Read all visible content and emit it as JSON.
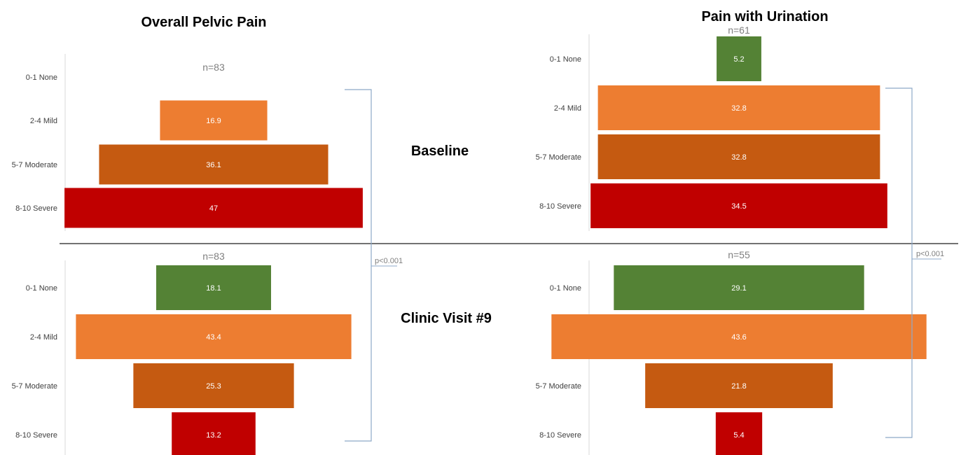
{
  "chart_data": {
    "type": "bar",
    "categories": [
      "0-1 None",
      "2-4 Mild",
      "5-7 Moderate",
      "8-10 Severe"
    ],
    "colors": [
      "#548235",
      "#ED7D31",
      "#C55A11",
      "#C00000"
    ],
    "row_labels": {
      "baseline": "Baseline",
      "visit9": "Clinic Visit #9"
    },
    "panels": [
      {
        "title": "Overall Pelvic Pain",
        "p_value": "p<0.001",
        "baseline": {
          "n_label": "n=83",
          "values": [
            0,
            16.9,
            36.1,
            47
          ]
        },
        "visit9": {
          "n_label": "n=83",
          "values": [
            18.1,
            43.4,
            25.3,
            13.2
          ]
        }
      },
      {
        "title": "Pain with Urination",
        "p_value": "p<0.001",
        "baseline": {
          "n_label": "n=61",
          "values": [
            5.2,
            32.8,
            32.8,
            34.5
          ]
        },
        "visit9": {
          "n_label": "n=55",
          "values": [
            29.1,
            43.6,
            21.8,
            5.4
          ]
        }
      }
    ]
  }
}
